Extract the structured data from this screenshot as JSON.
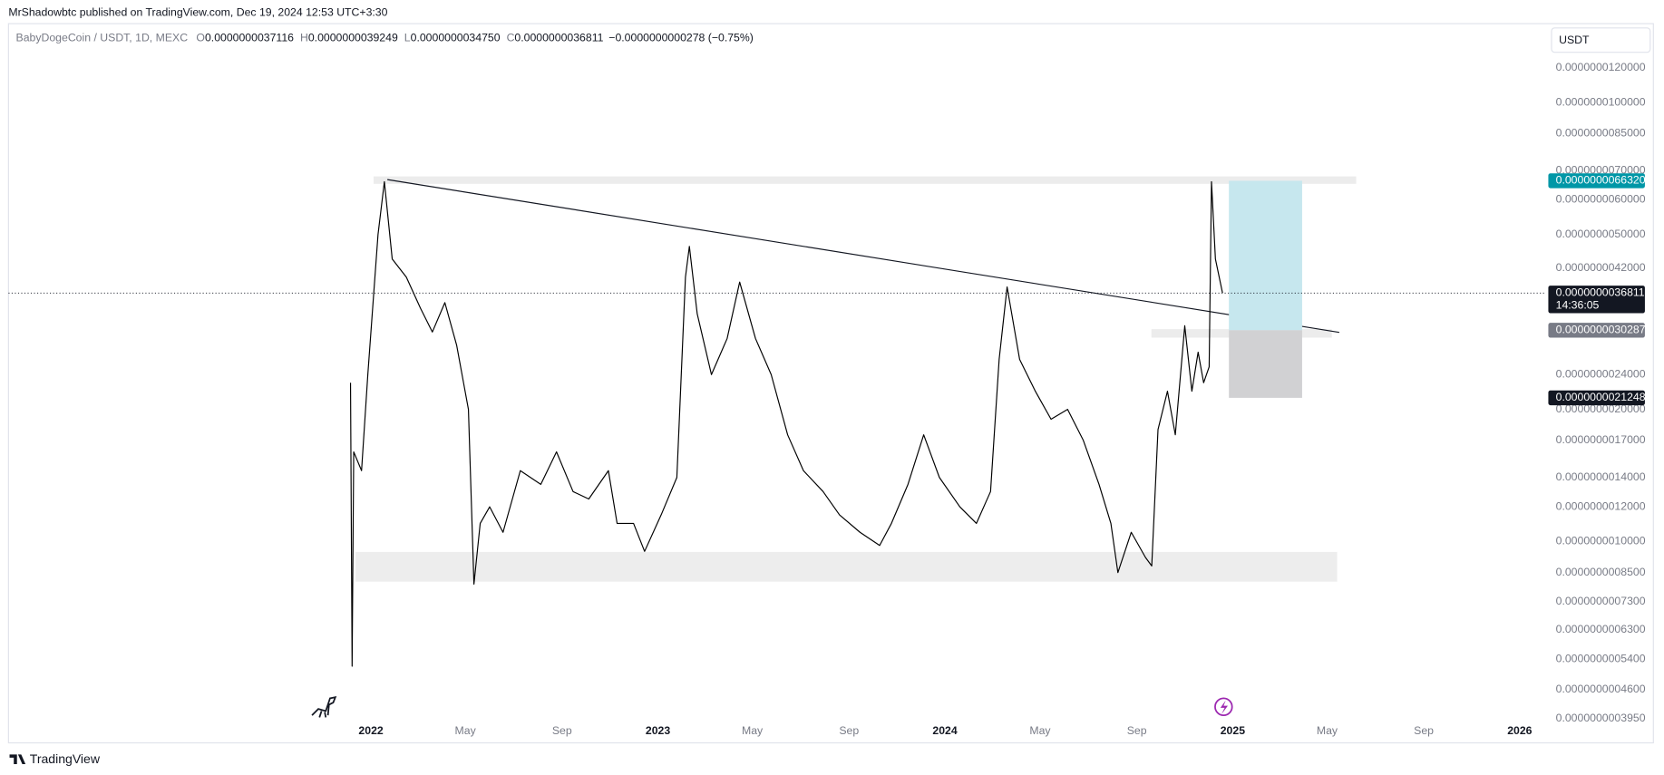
{
  "header": {
    "publisher": "MrShadowbtc published on TradingView.com, Dec 19, 2024 12:53 UTC+3:30"
  },
  "legend": {
    "symbol": "BabyDogeCoin / USDT, 1D, MEXC",
    "ohlc": [
      {
        "key": "O",
        "value": "0.0000000037116"
      },
      {
        "key": "H",
        "value": "0.0000000039249"
      },
      {
        "key": "L",
        "value": "0.0000000034750"
      },
      {
        "key": "C",
        "value": "0.0000000036811"
      }
    ],
    "change": "−0.0000000000278 (−0.75%)"
  },
  "currency": "USDT",
  "footer": {
    "brand": "TradingView"
  },
  "chart_data": {
    "type": "line",
    "log_scale": true,
    "grid": false,
    "color": "#000000",
    "xlim": [
      "2020-09-27",
      "2026-02-01"
    ],
    "ylim": [
      3.89e-10,
      1.33e-08
    ],
    "xticks": [
      {
        "value": "2022-01-01",
        "label": "2022"
      },
      {
        "value": "2022-05-01",
        "label": "May"
      },
      {
        "value": "2022-09-01",
        "label": "Sep"
      },
      {
        "value": "2023-01-01",
        "label": "2023"
      },
      {
        "value": "2023-05-01",
        "label": "May"
      },
      {
        "value": "2023-09-01",
        "label": "Sep"
      },
      {
        "value": "2024-01-01",
        "label": "2024"
      },
      {
        "value": "2024-05-01",
        "label": "May"
      },
      {
        "value": "2024-09-01",
        "label": "Sep"
      },
      {
        "value": "2025-01-01",
        "label": "2025"
      },
      {
        "value": "2025-05-01",
        "label": "May"
      },
      {
        "value": "2025-09-01",
        "label": "Sep"
      },
      {
        "value": "2026-01-01",
        "label": "2026"
      }
    ],
    "yticks": [
      {
        "value": 1.2e-08,
        "label": "0.0000000120000"
      },
      {
        "value": 1e-08,
        "label": "0.0000000100000"
      },
      {
        "value": 8.5e-09,
        "label": "0.0000000085000"
      },
      {
        "value": 7e-09,
        "label": "0.0000000070000"
      },
      {
        "value": 6e-09,
        "label": "0.0000000060000"
      },
      {
        "value": 5e-09,
        "label": "0.0000000050000"
      },
      {
        "value": 4.2e-09,
        "label": "0.0000000042000"
      },
      {
        "value": 2.4e-09,
        "label": "0.0000000024000"
      },
      {
        "value": 2e-09,
        "label": "0.0000000020000"
      },
      {
        "value": 1.7e-09,
        "label": "0.0000000017000"
      },
      {
        "value": 1.4e-09,
        "label": "0.0000000014000"
      },
      {
        "value": 1.2e-09,
        "label": "0.0000000012000"
      },
      {
        "value": 1e-09,
        "label": "0.0000000010000"
      },
      {
        "value": 8.5e-10,
        "label": "0.0000000008500"
      },
      {
        "value": 7.3e-10,
        "label": "0.0000000007300"
      },
      {
        "value": 6.3e-10,
        "label": "0.0000000006300"
      },
      {
        "value": 5.4e-10,
        "label": "0.0000000005400"
      },
      {
        "value": 4.6e-10,
        "label": "0.0000000004600"
      },
      {
        "value": 3.95e-10,
        "label": "0.0000000003950"
      }
    ],
    "price_labels": [
      {
        "value": 6.632e-09,
        "label": "0.0000000066320",
        "color": "#0097a7"
      },
      {
        "value": 3.6811e-09,
        "label": "0.0000000036811",
        "color": "#131722"
      },
      {
        "value": 3.0287e-09,
        "label": "0.0000000030287",
        "color": "#787b86"
      },
      {
        "value": 2.1248e-09,
        "label": "0.0000000021248",
        "color": "#131722"
      }
    ],
    "countdown": "14:36:05",
    "x": [
      "2021-12-06",
      "2021-12-08",
      "2021-12-10",
      "2021-12-20",
      "2021-12-28",
      "2022-01-10",
      "2022-01-18",
      "2022-01-28",
      "2022-02-15",
      "2022-03-05",
      "2022-03-20",
      "2022-04-05",
      "2022-04-20",
      "2022-05-05",
      "2022-05-12",
      "2022-05-20",
      "2022-06-01",
      "2022-06-18",
      "2022-07-10",
      "2022-08-05",
      "2022-08-25",
      "2022-09-15",
      "2022-10-05",
      "2022-10-30",
      "2022-11-10",
      "2022-12-01",
      "2022-12-15",
      "2023-01-05",
      "2023-01-25",
      "2023-02-05",
      "2023-02-10",
      "2023-02-20",
      "2023-03-10",
      "2023-03-30",
      "2023-04-15",
      "2023-05-05",
      "2023-05-25",
      "2023-06-15",
      "2023-07-05",
      "2023-07-30",
      "2023-08-20",
      "2023-09-15",
      "2023-10-10",
      "2023-10-25",
      "2023-11-15",
      "2023-12-05",
      "2023-12-25",
      "2024-01-20",
      "2024-02-10",
      "2024-02-28",
      "2024-03-10",
      "2024-03-20",
      "2024-04-05",
      "2024-04-25",
      "2024-05-15",
      "2024-06-05",
      "2024-06-25",
      "2024-07-15",
      "2024-07-30",
      "2024-08-08",
      "2024-08-25",
      "2024-09-12",
      "2024-09-20",
      "2024-09-28",
      "2024-10-10",
      "2024-10-20",
      "2024-11-01",
      "2024-11-10",
      "2024-11-18",
      "2024-11-25",
      "2024-12-02",
      "2024-12-05",
      "2024-12-10",
      "2024-12-19"
    ],
    "values": [
      2.3e-09,
      5.2e-10,
      1.6e-09,
      1.45e-09,
      2.4e-09,
      5e-09,
      6.6e-09,
      4.4e-09,
      4e-09,
      3.4e-09,
      3e-09,
      3.5e-09,
      2.8e-09,
      2e-09,
      8e-10,
      1.1e-09,
      1.2e-09,
      1.05e-09,
      1.45e-09,
      1.35e-09,
      1.6e-09,
      1.3e-09,
      1.25e-09,
      1.45e-09,
      1.1e-09,
      1.1e-09,
      9.5e-10,
      1.15e-09,
      1.4e-09,
      4e-09,
      4.7e-09,
      3.3e-09,
      2.4e-09,
      2.9e-09,
      3.9e-09,
      2.9e-09,
      2.4e-09,
      1.75e-09,
      1.45e-09,
      1.3e-09,
      1.15e-09,
      1.05e-09,
      9.8e-10,
      1.1e-09,
      1.35e-09,
      1.75e-09,
      1.4e-09,
      1.2e-09,
      1.1e-09,
      1.3e-09,
      2.6e-09,
      3.8e-09,
      2.6e-09,
      2.2e-09,
      1.9e-09,
      2e-09,
      1.7e-09,
      1.35e-09,
      1.1e-09,
      8.5e-10,
      1.05e-09,
      9.2e-10,
      8.8e-10,
      1.8e-09,
      2.2e-09,
      1.75e-09,
      3.1e-09,
      2.2e-09,
      2.7e-09,
      2.3e-09,
      2.5e-09,
      6.6e-09,
      4.4e-09,
      3.6811e-09
    ]
  }
}
